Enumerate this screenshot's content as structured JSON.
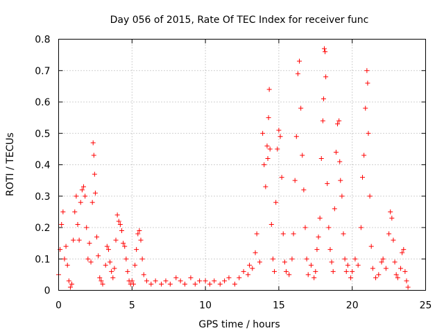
{
  "chart_data": {
    "type": "scatter",
    "title": "Day 056 of 2015, Rate Of TEC Index for receiver func",
    "xlabel": "GPS time / hours",
    "ylabel": "ROTI / TECUs",
    "xlim": [
      0,
      25
    ],
    "ylim": [
      0,
      0.8
    ],
    "x_ticks": [
      "0",
      "5",
      "10",
      "15",
      "20",
      "25"
    ],
    "y_ticks": [
      "0",
      "0.1",
      "0.2",
      "0.3",
      "0.4",
      "0.5",
      "0.6",
      "0.7",
      "0.8"
    ],
    "marker": "plus",
    "grid": true,
    "legend": "none",
    "colors": {
      "marker": "#ff0000",
      "grid": "#a0a0a0",
      "axes": "#000000"
    },
    "series": [
      {
        "name": "ROTI",
        "points": [
          [
            0.0,
            0.05
          ],
          [
            0.1,
            0.13
          ],
          [
            0.2,
            0.21
          ],
          [
            0.3,
            0.25
          ],
          [
            0.4,
            0.1
          ],
          [
            0.5,
            0.14
          ],
          [
            0.6,
            0.08
          ],
          [
            0.7,
            0.03
          ],
          [
            0.8,
            0.01
          ],
          [
            0.9,
            0.02
          ],
          [
            1.0,
            0.16
          ],
          [
            1.1,
            0.25
          ],
          [
            1.2,
            0.3
          ],
          [
            1.3,
            0.21
          ],
          [
            1.4,
            0.16
          ],
          [
            1.5,
            0.28
          ],
          [
            1.6,
            0.32
          ],
          [
            1.7,
            0.33
          ],
          [
            1.8,
            0.3
          ],
          [
            1.9,
            0.2
          ],
          [
            2.0,
            0.1
          ],
          [
            2.1,
            0.15
          ],
          [
            2.2,
            0.09
          ],
          [
            2.3,
            0.28
          ],
          [
            2.35,
            0.47
          ],
          [
            2.4,
            0.43
          ],
          [
            2.45,
            0.37
          ],
          [
            2.5,
            0.31
          ],
          [
            2.6,
            0.17
          ],
          [
            2.7,
            0.11
          ],
          [
            2.8,
            0.04
          ],
          [
            2.9,
            0.03
          ],
          [
            3.0,
            0.02
          ],
          [
            3.2,
            0.08
          ],
          [
            3.3,
            0.14
          ],
          [
            3.4,
            0.13
          ],
          [
            3.5,
            0.09
          ],
          [
            3.6,
            0.06
          ],
          [
            3.7,
            0.04
          ],
          [
            3.8,
            0.07
          ],
          [
            3.9,
            0.16
          ],
          [
            4.0,
            0.24
          ],
          [
            4.1,
            0.22
          ],
          [
            4.2,
            0.21
          ],
          [
            4.3,
            0.19
          ],
          [
            4.4,
            0.15
          ],
          [
            4.5,
            0.14
          ],
          [
            4.6,
            0.1
          ],
          [
            4.7,
            0.06
          ],
          [
            4.8,
            0.03
          ],
          [
            4.9,
            0.02
          ],
          [
            5.0,
            0.03
          ],
          [
            5.1,
            0.02
          ],
          [
            5.2,
            0.08
          ],
          [
            5.3,
            0.13
          ],
          [
            5.4,
            0.18
          ],
          [
            5.5,
            0.19
          ],
          [
            5.6,
            0.16
          ],
          [
            5.7,
            0.1
          ],
          [
            5.8,
            0.05
          ],
          [
            6.0,
            0.03
          ],
          [
            6.3,
            0.02
          ],
          [
            6.6,
            0.03
          ],
          [
            7.0,
            0.02
          ],
          [
            7.3,
            0.03
          ],
          [
            7.6,
            0.02
          ],
          [
            8.0,
            0.04
          ],
          [
            8.3,
            0.03
          ],
          [
            8.6,
            0.02
          ],
          [
            9.0,
            0.04
          ],
          [
            9.3,
            0.02
          ],
          [
            9.6,
            0.03
          ],
          [
            10.0,
            0.03
          ],
          [
            10.3,
            0.02
          ],
          [
            10.6,
            0.03
          ],
          [
            11.0,
            0.02
          ],
          [
            11.3,
            0.03
          ],
          [
            11.6,
            0.04
          ],
          [
            12.0,
            0.02
          ],
          [
            12.3,
            0.04
          ],
          [
            12.6,
            0.06
          ],
          [
            12.9,
            0.05
          ],
          [
            13.0,
            0.08
          ],
          [
            13.2,
            0.07
          ],
          [
            13.4,
            0.12
          ],
          [
            13.5,
            0.18
          ],
          [
            13.7,
            0.09
          ],
          [
            13.9,
            0.5
          ],
          [
            14.0,
            0.4
          ],
          [
            14.1,
            0.33
          ],
          [
            14.2,
            0.46
          ],
          [
            14.25,
            0.42
          ],
          [
            14.3,
            0.55
          ],
          [
            14.35,
            0.64
          ],
          [
            14.4,
            0.45
          ],
          [
            14.5,
            0.21
          ],
          [
            14.6,
            0.1
          ],
          [
            14.7,
            0.06
          ],
          [
            14.8,
            0.28
          ],
          [
            14.9,
            0.45
          ],
          [
            15.0,
            0.51
          ],
          [
            15.1,
            0.49
          ],
          [
            15.2,
            0.36
          ],
          [
            15.3,
            0.18
          ],
          [
            15.4,
            0.09
          ],
          [
            15.5,
            0.06
          ],
          [
            15.7,
            0.05
          ],
          [
            15.9,
            0.1
          ],
          [
            16.0,
            0.18
          ],
          [
            16.1,
            0.35
          ],
          [
            16.2,
            0.49
          ],
          [
            16.3,
            0.69
          ],
          [
            16.4,
            0.73
          ],
          [
            16.5,
            0.58
          ],
          [
            16.6,
            0.43
          ],
          [
            16.7,
            0.32
          ],
          [
            16.8,
            0.2
          ],
          [
            16.9,
            0.1
          ],
          [
            17.0,
            0.05
          ],
          [
            17.2,
            0.08
          ],
          [
            17.4,
            0.04
          ],
          [
            17.5,
            0.06
          ],
          [
            17.6,
            0.13
          ],
          [
            17.7,
            0.17
          ],
          [
            17.8,
            0.23
          ],
          [
            17.9,
            0.42
          ],
          [
            18.0,
            0.54
          ],
          [
            18.05,
            0.61
          ],
          [
            18.1,
            0.77
          ],
          [
            18.15,
            0.76
          ],
          [
            18.2,
            0.68
          ],
          [
            18.3,
            0.34
          ],
          [
            18.4,
            0.2
          ],
          [
            18.5,
            0.13
          ],
          [
            18.6,
            0.09
          ],
          [
            18.7,
            0.06
          ],
          [
            18.8,
            0.26
          ],
          [
            18.9,
            0.44
          ],
          [
            19.0,
            0.53
          ],
          [
            19.1,
            0.54
          ],
          [
            19.15,
            0.41
          ],
          [
            19.2,
            0.35
          ],
          [
            19.3,
            0.3
          ],
          [
            19.4,
            0.18
          ],
          [
            19.5,
            0.1
          ],
          [
            19.6,
            0.06
          ],
          [
            19.7,
            0.08
          ],
          [
            19.9,
            0.04
          ],
          [
            20.0,
            0.06
          ],
          [
            20.2,
            0.1
          ],
          [
            20.4,
            0.08
          ],
          [
            20.6,
            0.2
          ],
          [
            20.7,
            0.36
          ],
          [
            20.8,
            0.43
          ],
          [
            20.9,
            0.58
          ],
          [
            21.0,
            0.7
          ],
          [
            21.05,
            0.66
          ],
          [
            21.1,
            0.5
          ],
          [
            21.2,
            0.3
          ],
          [
            21.3,
            0.14
          ],
          [
            21.4,
            0.07
          ],
          [
            21.6,
            0.04
          ],
          [
            21.8,
            0.05
          ],
          [
            22.0,
            0.09
          ],
          [
            22.1,
            0.1
          ],
          [
            22.3,
            0.07
          ],
          [
            22.5,
            0.18
          ],
          [
            22.6,
            0.25
          ],
          [
            22.7,
            0.23
          ],
          [
            22.8,
            0.16
          ],
          [
            22.9,
            0.09
          ],
          [
            23.0,
            0.05
          ],
          [
            23.1,
            0.04
          ],
          [
            23.3,
            0.07
          ],
          [
            23.4,
            0.12
          ],
          [
            23.5,
            0.13
          ],
          [
            23.6,
            0.06
          ],
          [
            23.7,
            0.03
          ],
          [
            23.8,
            0.01
          ]
        ]
      }
    ]
  }
}
